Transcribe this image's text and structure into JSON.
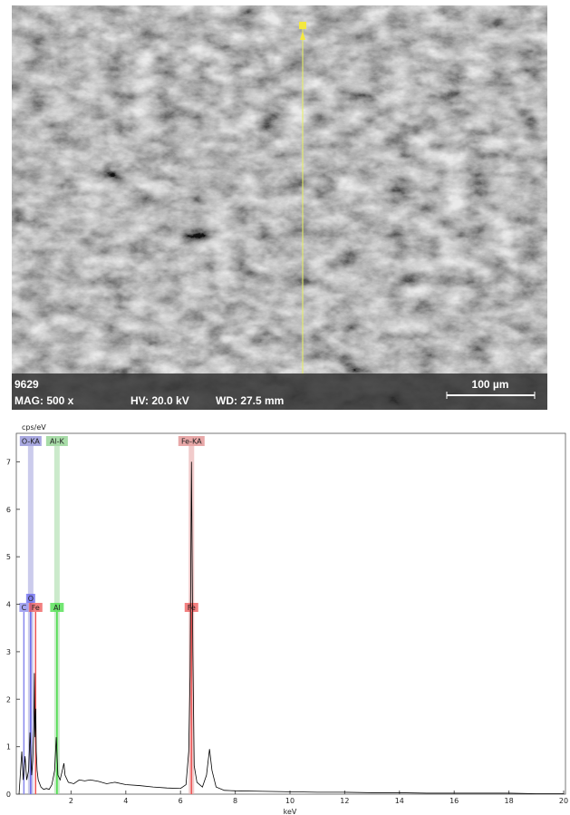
{
  "sem_image": {
    "sample": "9629",
    "mag": "MAG: 500 x",
    "hv": "HV: 20.0 kV",
    "wd": "WD: 27.5 mm",
    "scale_bar": "100 µm"
  },
  "chart_data": {
    "type": "line",
    "y_label": "cps/eV",
    "x_label": "keV",
    "xlim": [
      0,
      20
    ],
    "xticks": [
      2,
      4,
      6,
      8,
      10,
      12,
      14,
      16,
      18,
      20
    ],
    "ylim": [
      0,
      7.6
    ],
    "yticks": [
      0,
      1,
      2,
      3,
      4,
      5,
      6,
      7
    ],
    "x": [
      0.1,
      0.2,
      0.25,
      0.28,
      0.32,
      0.38,
      0.45,
      0.5,
      0.53,
      0.56,
      0.6,
      0.64,
      0.66,
      0.68,
      0.71,
      0.73,
      0.76,
      0.8,
      0.9,
      1.0,
      1.1,
      1.2,
      1.3,
      1.4,
      1.46,
      1.52,
      1.6,
      1.7,
      1.74,
      1.78,
      1.9,
      2.1,
      2.3,
      2.5,
      2.7,
      3.0,
      3.3,
      3.6,
      4.0,
      4.5,
      5.0,
      5.5,
      6.0,
      6.2,
      6.3,
      6.35,
      6.4,
      6.45,
      6.5,
      6.6,
      6.8,
      6.95,
      7.06,
      7.15,
      7.3,
      7.6,
      8.0,
      9,
      10,
      11,
      12,
      13,
      14,
      15,
      16,
      17,
      18,
      19,
      20
    ],
    "series": [
      {
        "color": "#000000",
        "values": [
          0,
          0.9,
          0.3,
          0.5,
          0.8,
          0.3,
          0.5,
          1.3,
          0.9,
          0.4,
          0.7,
          1.4,
          2.55,
          1.2,
          1.8,
          0.9,
          0.5,
          0.3,
          0.15,
          0.1,
          0.12,
          0.1,
          0.2,
          0.5,
          1.2,
          0.4,
          0.3,
          0.55,
          0.65,
          0.4,
          0.25,
          0.22,
          0.3,
          0.28,
          0.3,
          0.27,
          0.22,
          0.25,
          0.2,
          0.18,
          0.15,
          0.13,
          0.12,
          0.2,
          0.9,
          2.5,
          7.0,
          3.0,
          0.6,
          0.25,
          0.15,
          0.4,
          0.95,
          0.5,
          0.15,
          0.08,
          0.07,
          0.06,
          0.05,
          0.04,
          0.04,
          0.03,
          0.03,
          0.02,
          0.02,
          0.02,
          0.02,
          0.01,
          0.01
        ]
      }
    ],
    "element_lines": [
      {
        "label": "O-KA",
        "x": 0.525,
        "color": "#a8a8e0"
      },
      {
        "label": "Al-K",
        "x": 1.486,
        "color": "#a8dca8"
      },
      {
        "label": "Fe-KA",
        "x": 6.4,
        "color": "#e8a8a8"
      }
    ],
    "element_markers": [
      {
        "label": "C",
        "x": 0.277,
        "color": "#8888ee",
        "row": 1
      },
      {
        "label": "O",
        "x": 0.525,
        "color": "#6666ee",
        "row": 0
      },
      {
        "label": "Fe",
        "x": 0.705,
        "color": "#ee5555",
        "row": 1
      },
      {
        "label": "Al",
        "x": 1.486,
        "color": "#44dd44",
        "row": 1
      },
      {
        "label": "Fe",
        "x": 6.4,
        "color": "#ee5555",
        "row": 1
      }
    ]
  }
}
